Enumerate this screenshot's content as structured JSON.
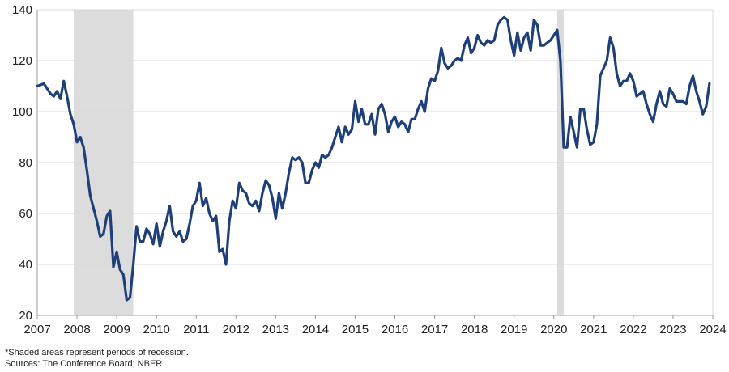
{
  "chart_data": {
    "type": "line",
    "title": "",
    "xlabel": "",
    "ylabel": "",
    "xlim": [
      2007,
      2024
    ],
    "ylim": [
      20,
      140
    ],
    "yticks": [
      20,
      40,
      60,
      80,
      100,
      120,
      140
    ],
    "xticks": [
      "2007",
      "2008",
      "2009",
      "2010",
      "2011",
      "2012",
      "2013",
      "2014",
      "2015",
      "2016",
      "2017",
      "2018",
      "2019",
      "2020",
      "2021",
      "2022",
      "2023",
      "2024"
    ],
    "grid": "horizontal",
    "legend": "none",
    "recessions": [
      {
        "start": "2007-12",
        "end": "2009-06"
      },
      {
        "start": "2020-02",
        "end": "2020-04"
      }
    ],
    "series": [
      {
        "color": "#1f3f7a",
        "points": [
          [
            "2007-01",
            110
          ],
          [
            "2007-03",
            111
          ],
          [
            "2007-05",
            107
          ],
          [
            "2007-06",
            106
          ],
          [
            "2007-07",
            108
          ],
          [
            "2007-08",
            105
          ],
          [
            "2007-09",
            112
          ],
          [
            "2007-10",
            106
          ],
          [
            "2007-11",
            99
          ],
          [
            "2007-12",
            95
          ],
          [
            "2008-01",
            88
          ],
          [
            "2008-02",
            90
          ],
          [
            "2008-03",
            86
          ],
          [
            "2008-04",
            77
          ],
          [
            "2008-05",
            67
          ],
          [
            "2008-06",
            62
          ],
          [
            "2008-07",
            57
          ],
          [
            "2008-08",
            51
          ],
          [
            "2008-09",
            52
          ],
          [
            "2008-10",
            59
          ],
          [
            "2008-11",
            61
          ],
          [
            "2008-12",
            39
          ],
          [
            "2009-01",
            45
          ],
          [
            "2009-02",
            38
          ],
          [
            "2009-03",
            36
          ],
          [
            "2009-04",
            26
          ],
          [
            "2009-05",
            27
          ],
          [
            "2009-06",
            40
          ],
          [
            "2009-07",
            55
          ],
          [
            "2009-08",
            49
          ],
          [
            "2009-09",
            49
          ],
          [
            "2009-10",
            54
          ],
          [
            "2009-11",
            52
          ],
          [
            "2009-12",
            48
          ],
          [
            "2010-01",
            56
          ],
          [
            "2010-02",
            47
          ],
          [
            "2010-03",
            53
          ],
          [
            "2010-04",
            57
          ],
          [
            "2010-05",
            63
          ],
          [
            "2010-06",
            53
          ],
          [
            "2010-07",
            51
          ],
          [
            "2010-08",
            53
          ],
          [
            "2010-09",
            49
          ],
          [
            "2010-10",
            50
          ],
          [
            "2010-11",
            56
          ],
          [
            "2010-12",
            63
          ],
          [
            "2011-01",
            65
          ],
          [
            "2011-02",
            72
          ],
          [
            "2011-03",
            63
          ],
          [
            "2011-04",
            66
          ],
          [
            "2011-05",
            60
          ],
          [
            "2011-06",
            57
          ],
          [
            "2011-07",
            59
          ],
          [
            "2011-08",
            45
          ],
          [
            "2011-09",
            46
          ],
          [
            "2011-10",
            40
          ],
          [
            "2011-11",
            57
          ],
          [
            "2011-12",
            65
          ],
          [
            "2012-01",
            62
          ],
          [
            "2012-02",
            72
          ],
          [
            "2012-03",
            69
          ],
          [
            "2012-04",
            68
          ],
          [
            "2012-05",
            64
          ],
          [
            "2012-06",
            63
          ],
          [
            "2012-07",
            65
          ],
          [
            "2012-08",
            61
          ],
          [
            "2012-09",
            68
          ],
          [
            "2012-10",
            73
          ],
          [
            "2012-11",
            71
          ],
          [
            "2012-12",
            66
          ],
          [
            "2013-01",
            58
          ],
          [
            "2013-02",
            68
          ],
          [
            "2013-03",
            62
          ],
          [
            "2013-04",
            68
          ],
          [
            "2013-05",
            76
          ],
          [
            "2013-06",
            82
          ],
          [
            "2013-07",
            81
          ],
          [
            "2013-08",
            82
          ],
          [
            "2013-09",
            80
          ],
          [
            "2013-10",
            72
          ],
          [
            "2013-11",
            72
          ],
          [
            "2013-12",
            77
          ],
          [
            "2014-01",
            80
          ],
          [
            "2014-02",
            78
          ],
          [
            "2014-03",
            83
          ],
          [
            "2014-04",
            82
          ],
          [
            "2014-05",
            83
          ],
          [
            "2014-06",
            86
          ],
          [
            "2014-07",
            90
          ],
          [
            "2014-08",
            94
          ],
          [
            "2014-09",
            88
          ],
          [
            "2014-10",
            94
          ],
          [
            "2014-11",
            91
          ],
          [
            "2014-12",
            93
          ],
          [
            "2015-01",
            104
          ],
          [
            "2015-02",
            96
          ],
          [
            "2015-03",
            101
          ],
          [
            "2015-04",
            95
          ],
          [
            "2015-05",
            95
          ],
          [
            "2015-06",
            99
          ],
          [
            "2015-07",
            91
          ],
          [
            "2015-08",
            101
          ],
          [
            "2015-09",
            103
          ],
          [
            "2015-10",
            99
          ],
          [
            "2015-11",
            92
          ],
          [
            "2015-12",
            96
          ],
          [
            "2016-01",
            98
          ],
          [
            "2016-02",
            94
          ],
          [
            "2016-03",
            96
          ],
          [
            "2016-04",
            95
          ],
          [
            "2016-05",
            92
          ],
          [
            "2016-06",
            97
          ],
          [
            "2016-07",
            97
          ],
          [
            "2016-08",
            101
          ],
          [
            "2016-09",
            104
          ],
          [
            "2016-10",
            100
          ],
          [
            "2016-11",
            109
          ],
          [
            "2016-12",
            113
          ],
          [
            "2017-01",
            112
          ],
          [
            "2017-02",
            116
          ],
          [
            "2017-03",
            125
          ],
          [
            "2017-04",
            119
          ],
          [
            "2017-05",
            117
          ],
          [
            "2017-06",
            118
          ],
          [
            "2017-07",
            120
          ],
          [
            "2017-08",
            121
          ],
          [
            "2017-09",
            120
          ],
          [
            "2017-10",
            126
          ],
          [
            "2017-11",
            129
          ],
          [
            "2017-12",
            123
          ],
          [
            "2018-01",
            125
          ],
          [
            "2018-02",
            130
          ],
          [
            "2018-03",
            127
          ],
          [
            "2018-04",
            126
          ],
          [
            "2018-05",
            128
          ],
          [
            "2018-06",
            127
          ],
          [
            "2018-07",
            128
          ],
          [
            "2018-08",
            134
          ],
          [
            "2018-09",
            136
          ],
          [
            "2018-10",
            137
          ],
          [
            "2018-11",
            136
          ],
          [
            "2018-12",
            128
          ],
          [
            "2019-01",
            122
          ],
          [
            "2019-02",
            131
          ],
          [
            "2019-03",
            124
          ],
          [
            "2019-04",
            129
          ],
          [
            "2019-05",
            131
          ],
          [
            "2019-06",
            124
          ],
          [
            "2019-07",
            136
          ],
          [
            "2019-08",
            134
          ],
          [
            "2019-09",
            126
          ],
          [
            "2019-10",
            126
          ],
          [
            "2019-11",
            127
          ],
          [
            "2019-12",
            128
          ],
          [
            "2020-01",
            130
          ],
          [
            "2020-02",
            132
          ],
          [
            "2020-03",
            120
          ],
          [
            "2020-04",
            86
          ],
          [
            "2020-05",
            86
          ],
          [
            "2020-06",
            98
          ],
          [
            "2020-07",
            92
          ],
          [
            "2020-08",
            86
          ],
          [
            "2020-09",
            101
          ],
          [
            "2020-10",
            101
          ],
          [
            "2020-11",
            93
          ],
          [
            "2020-12",
            87
          ],
          [
            "2021-01",
            88
          ],
          [
            "2021-02",
            95
          ],
          [
            "2021-03",
            114
          ],
          [
            "2021-04",
            117
          ],
          [
            "2021-05",
            120
          ],
          [
            "2021-06",
            129
          ],
          [
            "2021-07",
            125
          ],
          [
            "2021-08",
            115
          ],
          [
            "2021-09",
            110
          ],
          [
            "2021-10",
            112
          ],
          [
            "2021-11",
            112
          ],
          [
            "2021-12",
            115
          ],
          [
            "2022-01",
            112
          ],
          [
            "2022-02",
            106
          ],
          [
            "2022-03",
            107
          ],
          [
            "2022-04",
            108
          ],
          [
            "2022-05",
            103
          ],
          [
            "2022-06",
            99
          ],
          [
            "2022-07",
            96
          ],
          [
            "2022-08",
            103
          ],
          [
            "2022-09",
            108
          ],
          [
            "2022-10",
            103
          ],
          [
            "2022-11",
            102
          ],
          [
            "2022-12",
            109
          ],
          [
            "2023-01",
            107
          ],
          [
            "2023-02",
            104
          ],
          [
            "2023-03",
            104
          ],
          [
            "2023-04",
            104
          ],
          [
            "2023-05",
            103
          ],
          [
            "2023-06",
            110
          ],
          [
            "2023-07",
            114
          ],
          [
            "2023-08",
            108
          ],
          [
            "2023-09",
            104
          ],
          [
            "2023-10",
            99
          ],
          [
            "2023-11",
            102
          ],
          [
            "2023-12",
            111
          ]
        ]
      }
    ]
  },
  "notes": {
    "recession": "*Shaded areas represent periods of recession.",
    "sources": "Sources: The Conference Board; NBER"
  }
}
